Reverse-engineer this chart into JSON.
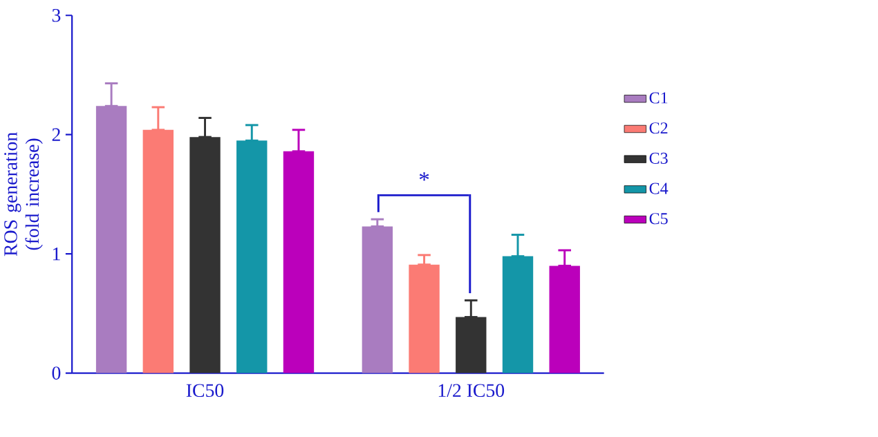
{
  "chart_data": {
    "type": "bar",
    "ylabel": "ROS generation (fold increase)",
    "categories": [
      "IC50",
      "1/2 IC50"
    ],
    "series": [
      {
        "name": "C1",
        "color": "#a97cc0",
        "values": [
          2.24,
          1.23
        ],
        "errors": [
          [
            2.24,
            2.43
          ],
          [
            1.23,
            1.29
          ]
        ]
      },
      {
        "name": "C2",
        "color": "#fb7b74",
        "values": [
          2.04,
          0.91
        ],
        "errors": [
          [
            2.04,
            2.23
          ],
          [
            0.91,
            0.99
          ]
        ]
      },
      {
        "name": "C3",
        "color": "#333333",
        "values": [
          1.98,
          0.47
        ],
        "errors": [
          [
            1.98,
            2.14
          ],
          [
            0.47,
            0.61
          ]
        ]
      },
      {
        "name": "C4",
        "color": "#1496a8",
        "values": [
          1.95,
          0.98
        ],
        "errors": [
          [
            1.95,
            2.08
          ],
          [
            0.98,
            1.16
          ]
        ]
      },
      {
        "name": "C5",
        "color": "#bb00bb",
        "values": [
          1.86,
          0.9
        ],
        "errors": [
          [
            1.86,
            2.04
          ],
          [
            0.9,
            1.03
          ]
        ]
      }
    ],
    "annotations": [
      "*"
    ],
    "ylim": [
      0,
      3
    ],
    "yticks": [
      0,
      1,
      2,
      3
    ],
    "grid": false,
    "legend": "right"
  }
}
